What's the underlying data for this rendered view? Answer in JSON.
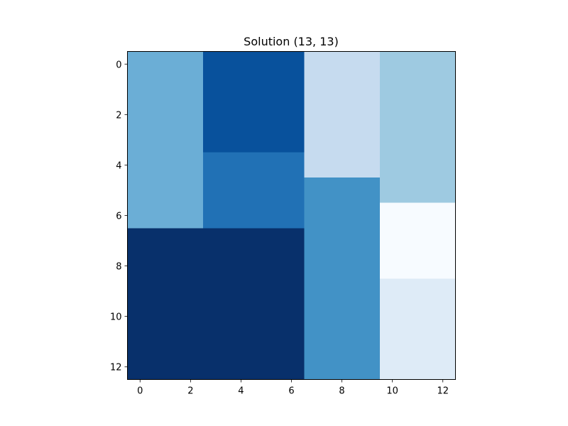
{
  "chart_data": {
    "type": "heatmap",
    "title": "Solution (13, 13)",
    "xlabel": "",
    "ylabel": "",
    "grid_size": [
      13,
      13
    ],
    "xlim": [
      -0.5,
      12.5
    ],
    "ylim": [
      12.5,
      -0.5
    ],
    "x_ticks": [
      0,
      2,
      4,
      6,
      8,
      10,
      12
    ],
    "y_ticks": [
      0,
      2,
      4,
      6,
      8,
      10,
      12
    ],
    "grid": false,
    "colormap": "Blues",
    "regions": [
      {
        "cols": [
          0,
          2
        ],
        "rows": [
          0,
          6
        ],
        "color": "#6baed6"
      },
      {
        "cols": [
          3,
          6
        ],
        "rows": [
          0,
          3
        ],
        "color": "#08519c"
      },
      {
        "cols": [
          3,
          6
        ],
        "rows": [
          4,
          6
        ],
        "color": "#2171b5"
      },
      {
        "cols": [
          0,
          6
        ],
        "rows": [
          7,
          12
        ],
        "color": "#08306b"
      },
      {
        "cols": [
          7,
          9
        ],
        "rows": [
          0,
          4
        ],
        "color": "#c6dbef"
      },
      {
        "cols": [
          7,
          9
        ],
        "rows": [
          5,
          12
        ],
        "color": "#4292c6"
      },
      {
        "cols": [
          10,
          12
        ],
        "rows": [
          0,
          5
        ],
        "color": "#9ecae1"
      },
      {
        "cols": [
          10,
          12
        ],
        "rows": [
          6,
          8
        ],
        "color": "#f7fbff"
      },
      {
        "cols": [
          10,
          12
        ],
        "rows": [
          9,
          12
        ],
        "color": "#deebf7"
      }
    ]
  }
}
